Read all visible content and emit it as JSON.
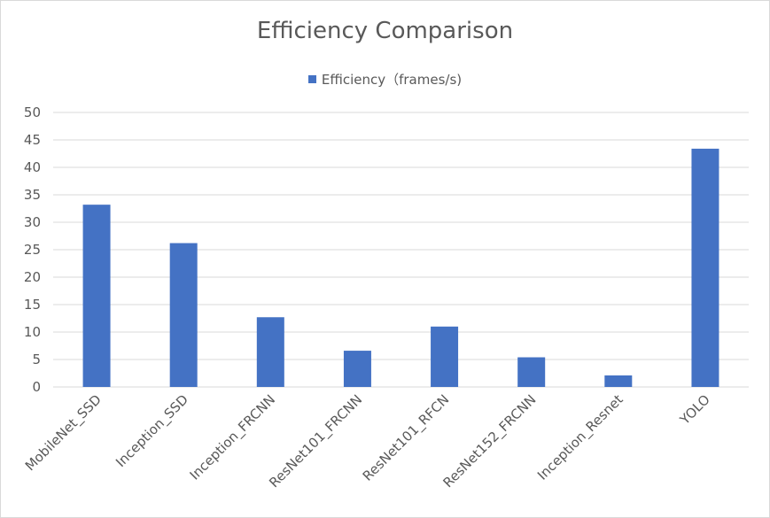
{
  "chart_data": {
    "type": "bar",
    "title": "Efficiency Comparison",
    "categories": [
      "MobileNet_SSD",
      "Inception_SSD",
      "Inception_FRCNN",
      "ResNet101_FRCNN",
      "ResNet101_RFCN",
      "ResNet152_FRCNN",
      "Inception_Resnet",
      "YOLO"
    ],
    "series": [
      {
        "name": "Efficiency（frames/s)",
        "values": [
          33.2,
          26.2,
          12.7,
          6.6,
          11.0,
          5.4,
          2.1,
          43.4
        ],
        "color": "#4472c4"
      }
    ],
    "ylim": [
      0,
      50
    ],
    "yticks": [
      0,
      5,
      10,
      15,
      20,
      25,
      30,
      35,
      40,
      45,
      50
    ],
    "grid": true,
    "legend_position": "top"
  },
  "colors": {
    "bar": "#4472c4",
    "grid": "#d9d9d9",
    "text": "#595959"
  }
}
